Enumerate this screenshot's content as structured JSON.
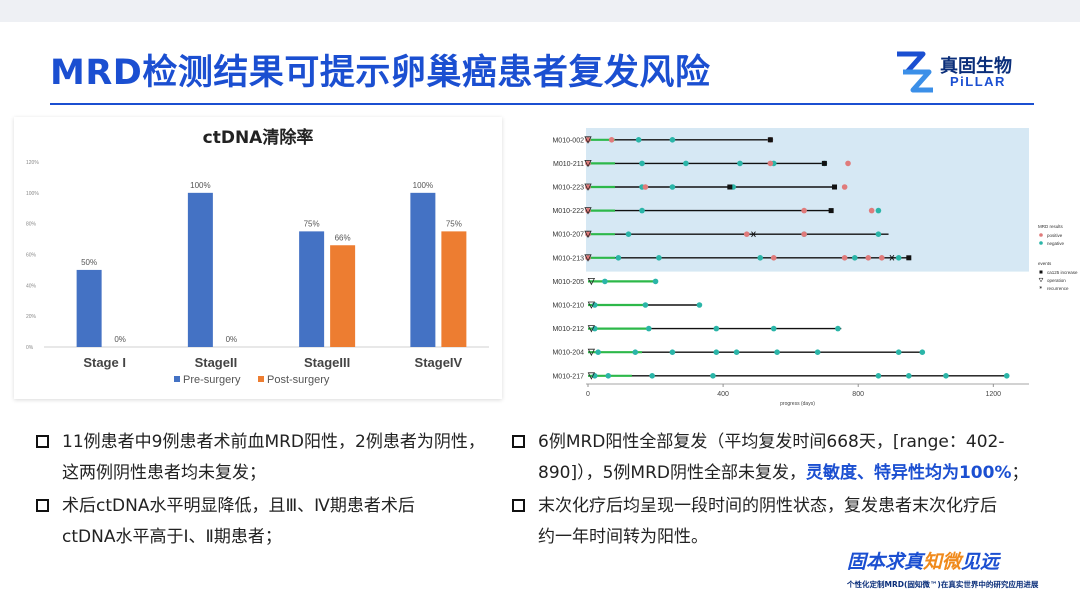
{
  "slide": {
    "title": "MRD检测结果可提示卵巢癌患者复发风险",
    "accent_color": "#1b4fd1"
  },
  "logo": {
    "name_cn": "真固生物",
    "name_en": "PiLLAR",
    "icon": "pillar-logo-icon"
  },
  "chart_data": [
    {
      "type": "bar",
      "title": "ctDNA清除率",
      "categories": [
        "Stage I",
        "StageII",
        "StageIII",
        "StageIV"
      ],
      "series": [
        {
          "name": "Pre-surgery",
          "values": [
            50,
            100,
            75,
            100
          ],
          "labels": [
            "50%",
            "100%",
            "75%",
            "100%"
          ],
          "color": "#4472c4"
        },
        {
          "name": "Post-surgery",
          "values": [
            0,
            0,
            66,
            75
          ],
          "labels": [
            "0%",
            "0%",
            "66%",
            "75%"
          ],
          "color": "#ed7d31"
        }
      ],
      "ylim": [
        0,
        120
      ],
      "yticks": [
        "0%",
        "20%",
        "40%",
        "60%",
        "80%",
        "100%",
        "120%"
      ],
      "legend": "bottom",
      "grid": false
    },
    {
      "type": "scatter",
      "xlabel": "progress (days)",
      "xlim": [
        0,
        1300
      ],
      "xticks": [
        0,
        400,
        800,
        1200
      ],
      "patients": [
        "M010-002",
        "M010-211",
        "M010-223",
        "M010-222",
        "M010-207",
        "M010-213",
        "M010-205",
        "M010-210",
        "M010-212",
        "M010-204",
        "M010-217"
      ],
      "recurrence_group": [
        "M010-002",
        "M010-211",
        "M010-223",
        "M010-222",
        "M010-207",
        "M010-213"
      ],
      "line_end": [
        540,
        700,
        730,
        720,
        890,
        950,
        200,
        330,
        750,
        990,
        1240
      ],
      "green_end": [
        80,
        80,
        80,
        80,
        80,
        80,
        200,
        170,
        180,
        160,
        130
      ],
      "positive": [
        [
          0,
          70,
          540
        ],
        [
          0,
          540,
          770
        ],
        [
          0,
          170,
          760
        ],
        [
          0,
          640,
          840
        ],
        [
          0,
          470,
          640
        ],
        [
          0,
          550,
          760,
          830,
          870
        ]
      ],
      "negative": [
        [
          150,
          250,
          540
        ],
        [
          160,
          290,
          450,
          550,
          700
        ],
        [
          160,
          250,
          430
        ],
        [
          160,
          860
        ],
        [
          120,
          640,
          860
        ],
        [
          90,
          210,
          510,
          790,
          920
        ],
        [
          50,
          200
        ],
        [
          20,
          170,
          330
        ],
        [
          20,
          180,
          380,
          550,
          740
        ],
        [
          30,
          140,
          250,
          380,
          440,
          560,
          680,
          920,
          990
        ],
        [
          20,
          60,
          190,
          370,
          860,
          950,
          1060,
          1240
        ]
      ],
      "ca125_increase": [
        [
          540
        ],
        [
          700
        ],
        [
          420,
          730
        ],
        [
          720
        ],
        [],
        [
          950
        ]
      ],
      "operation": [
        0,
        0,
        0,
        0,
        0,
        0,
        10,
        10,
        10,
        10,
        10
      ],
      "recurrence_marks": [
        [],
        [],
        [],
        [],
        [
          490
        ],
        [
          900
        ]
      ],
      "legend": {
        "mrd_title": "MRD results",
        "mrd_items": [
          {
            "label": "positive",
            "color": "#e07b7b"
          },
          {
            "label": "negative",
            "color": "#2bb5a8"
          }
        ],
        "events_title": "events",
        "event_items": [
          {
            "label": "ca125 increase",
            "symbol": "square"
          },
          {
            "label": "operation",
            "symbol": "triangle"
          },
          {
            "label": "recurrence",
            "symbol": "asterisk"
          }
        ]
      },
      "colors": {
        "line": "#111111",
        "green": "#2db84a",
        "band": "#d6e8f4",
        "negative": "#2bb5a8",
        "positive": "#e07b7b"
      }
    }
  ],
  "bullets": {
    "left_1": {
      "line1": "11例患者中9例患者术前血MRD阳性，2例患者为阴性，",
      "line2": "这两例阴性患者均未复发；"
    },
    "left_2": {
      "line1": "术后ctDNA水平明显降低，且Ⅲ、Ⅳ期患者术后",
      "line2": "ctDNA水平高于Ⅰ、Ⅱ期患者；"
    },
    "right_1": {
      "line1": "6例MRD阳性全部复发（平均复发时间668天，[range：402-",
      "line2_a": "890]），5例MRD阴性全部未复发，",
      "line2_hl": "灵敏度、特异性均为100%",
      "line2_b": "；"
    },
    "right_2": {
      "line1": "末次化疗后均呈现一段时间的阴性状态，复发患者末次化疗后",
      "line2": "约一年时间转为阳性。"
    }
  },
  "slogan": {
    "part1": "固本求真",
    "part2": "知微",
    "part3": "见远",
    "sub": "个性化定制MRD(固知微™)在真实世界中的研究应用进展"
  }
}
